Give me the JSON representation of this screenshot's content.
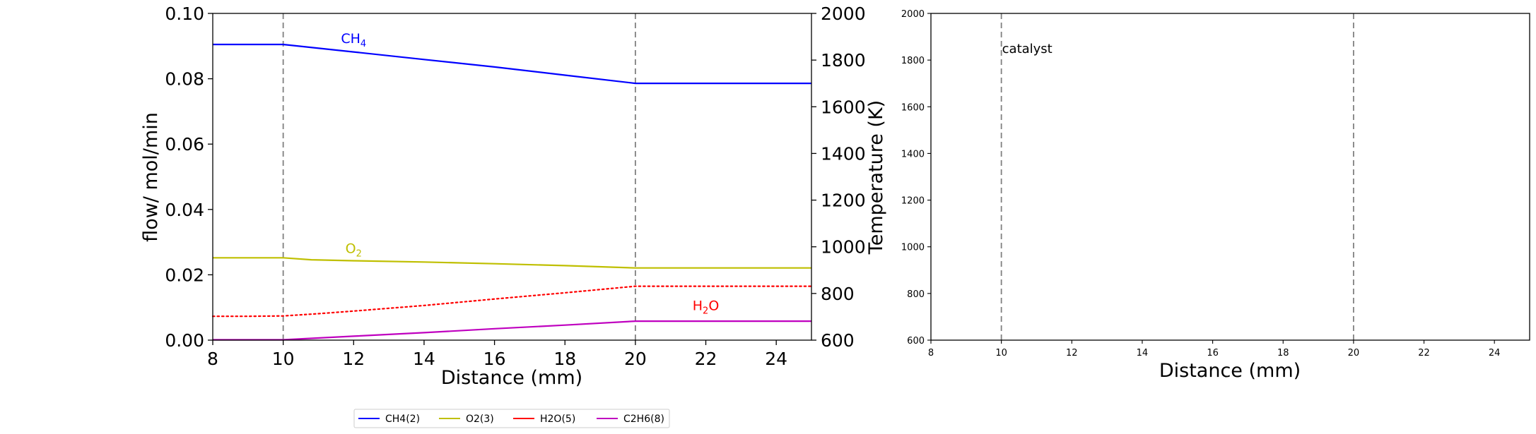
{
  "chart_data": [
    {
      "type": "line",
      "xlabel": "Distance (mm)",
      "ylabel": "flow/ mol/min",
      "y2label": "Temperature (K)",
      "xlim": [
        8,
        25
      ],
      "ylim": [
        0,
        0.1
      ],
      "y2lim": [
        600,
        2000
      ],
      "xticks": [
        "8",
        "10",
        "12",
        "14",
        "16",
        "18",
        "20",
        "22",
        "24"
      ],
      "yticks": [
        "0.00",
        "0.02",
        "0.04",
        "0.06",
        "0.08",
        "0.10"
      ],
      "y2ticks": [
        "600",
        "800",
        "1000",
        "1200",
        "1400",
        "1600",
        "1800",
        "2000"
      ],
      "vlines": [
        10,
        20
      ],
      "grid": false,
      "series": [
        {
          "name": "CH4(2)",
          "color": "#0000ff",
          "style": "solid",
          "x": [
            8,
            10,
            12,
            14,
            16,
            18,
            20,
            25
          ],
          "y": [
            0.0905,
            0.0905,
            0.0882,
            0.0859,
            0.0836,
            0.0811,
            0.0786,
            0.0786
          ]
        },
        {
          "name": "O2(3)",
          "color": "#bfbf00",
          "style": "solid",
          "x": [
            8,
            10,
            10.8,
            12,
            14,
            16,
            18,
            20,
            25
          ],
          "y": [
            0.0252,
            0.0252,
            0.0246,
            0.0243,
            0.0239,
            0.0234,
            0.0228,
            0.0221,
            0.0221
          ]
        },
        {
          "name": "H2O(5)",
          "color": "#ff0000",
          "style": "dotted",
          "x": [
            8,
            9,
            10,
            11,
            12,
            14,
            16,
            18,
            20,
            25
          ],
          "y": [
            0.0073,
            0.0073,
            0.0074,
            0.0081,
            0.0089,
            0.0106,
            0.0126,
            0.0145,
            0.0165,
            0.0165
          ]
        },
        {
          "name": "C2H6(8)",
          "color": "#bf00bf",
          "style": "solid",
          "x": [
            8,
            10,
            12,
            14,
            16,
            18,
            20,
            25
          ],
          "y": [
            0.0001,
            0.0001,
            0.0012,
            0.0023,
            0.0035,
            0.0046,
            0.0058,
            0.0058
          ]
        }
      ],
      "annotations": [
        {
          "text": "CH",
          "sub": "4",
          "color": "#0000ff",
          "x": 12.0,
          "y": 0.0905
        },
        {
          "text": "O",
          "sub": "2",
          "color": "#bfbf00",
          "x": 12.0,
          "y": 0.0262
        },
        {
          "text": "H",
          "sub": "2",
          "tail": "O",
          "color": "#ff0000",
          "x": 22.0,
          "y": 0.0088
        }
      ],
      "legend": {
        "placement": "bottom-center",
        "entries": [
          {
            "label": "CH4(2)",
            "color": "#0000ff"
          },
          {
            "label": "O2(3)",
            "color": "#bfbf00"
          },
          {
            "label": "H2O(5)",
            "color": "#ff0000"
          },
          {
            "label": "C2H6(8)",
            "color": "#bf00bf"
          }
        ]
      }
    },
    {
      "type": "line",
      "xlabel": "Distance (mm)",
      "ylabel": "",
      "xlim": [
        8,
        25
      ],
      "ylim": [
        600,
        2000
      ],
      "xticks": [
        "8",
        "10",
        "12",
        "14",
        "16",
        "18",
        "20",
        "22",
        "24"
      ],
      "yticks": [
        "600",
        "800",
        "1000",
        "1200",
        "1400",
        "1600",
        "1800",
        "2000"
      ],
      "vlines": [
        10,
        20
      ],
      "grid": false,
      "series": [],
      "annotations": [
        {
          "text": "catalyst",
          "x": 10,
          "y": 1830
        }
      ]
    }
  ]
}
